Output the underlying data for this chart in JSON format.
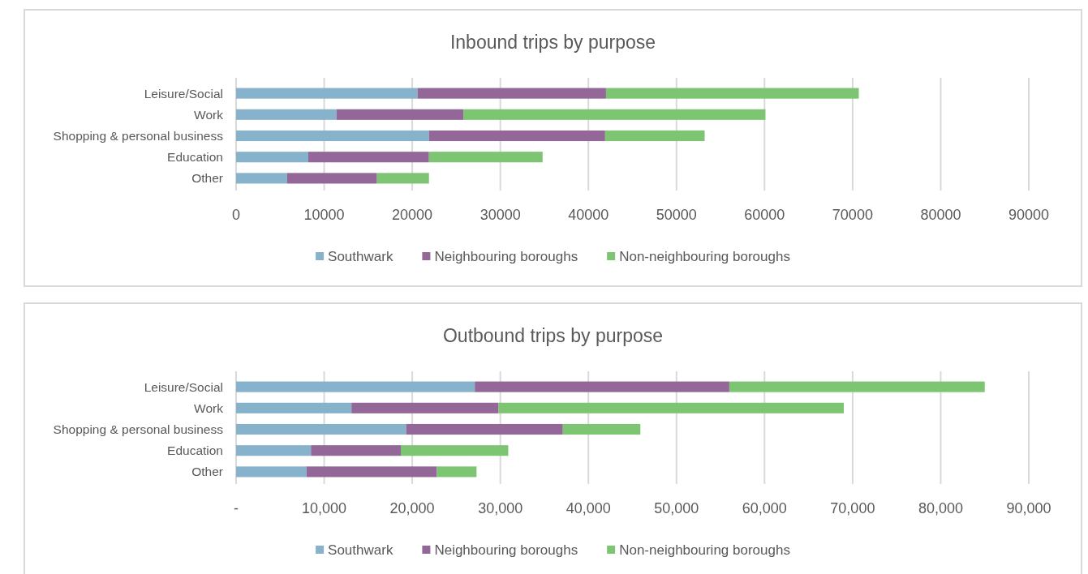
{
  "chart_data": [
    {
      "type": "bar",
      "orientation": "horizontal",
      "stacked": true,
      "title": "Inbound trips by purpose",
      "categories": [
        "Leisure/Social",
        "Work",
        "Shopping & personal business",
        "Education",
        "Other"
      ],
      "series": [
        {
          "name": "Southwark",
          "color": "#86b2cc",
          "values": [
            20600,
            11400,
            21900,
            8200,
            5800
          ]
        },
        {
          "name": "Neighbouring boroughs",
          "color": "#936797",
          "values": [
            21400,
            14400,
            20000,
            13700,
            10200
          ]
        },
        {
          "name": "Non-neighbouring boroughs",
          "color": "#7ec573",
          "values": [
            28700,
            34300,
            11300,
            12900,
            5900
          ]
        }
      ],
      "xlim": [
        0,
        90000
      ],
      "xticks": [
        0,
        10000,
        20000,
        30000,
        40000,
        50000,
        60000,
        70000,
        80000,
        90000
      ],
      "grid": "x",
      "legend": "bottom"
    },
    {
      "type": "bar",
      "orientation": "horizontal",
      "stacked": true,
      "title": "Outbound trips by purpose",
      "categories": [
        "Leisure/Social",
        "Work",
        "Shopping & personal business",
        "Education",
        "Other"
      ],
      "series": [
        {
          "name": "Southwark",
          "color": "#86b2cc",
          "values": [
            27100,
            13100,
            19300,
            8500,
            8000
          ]
        },
        {
          "name": "Neighbouring boroughs",
          "color": "#936797",
          "values": [
            28900,
            16700,
            17800,
            10200,
            14800
          ]
        },
        {
          "name": "Non-neighbouring boroughs",
          "color": "#7ec573",
          "values": [
            29000,
            39200,
            8800,
            12200,
            4500
          ]
        }
      ],
      "xlim": [
        0,
        90000
      ],
      "xticks": [
        {
          "value": 0,
          "label": "-"
        },
        {
          "value": 10000,
          "label": "10,000"
        },
        {
          "value": 20000,
          "label": "20,000"
        },
        {
          "value": 30000,
          "label": "30,000"
        },
        {
          "value": 40000,
          "label": "40,000"
        },
        {
          "value": 50000,
          "label": "50,000"
        },
        {
          "value": 60000,
          "label": "60,000"
        },
        {
          "value": 70000,
          "label": "70,000"
        },
        {
          "value": 80000,
          "label": "80,000"
        },
        {
          "value": 90000,
          "label": "90,000"
        }
      ],
      "grid": "x",
      "legend": "bottom"
    }
  ]
}
